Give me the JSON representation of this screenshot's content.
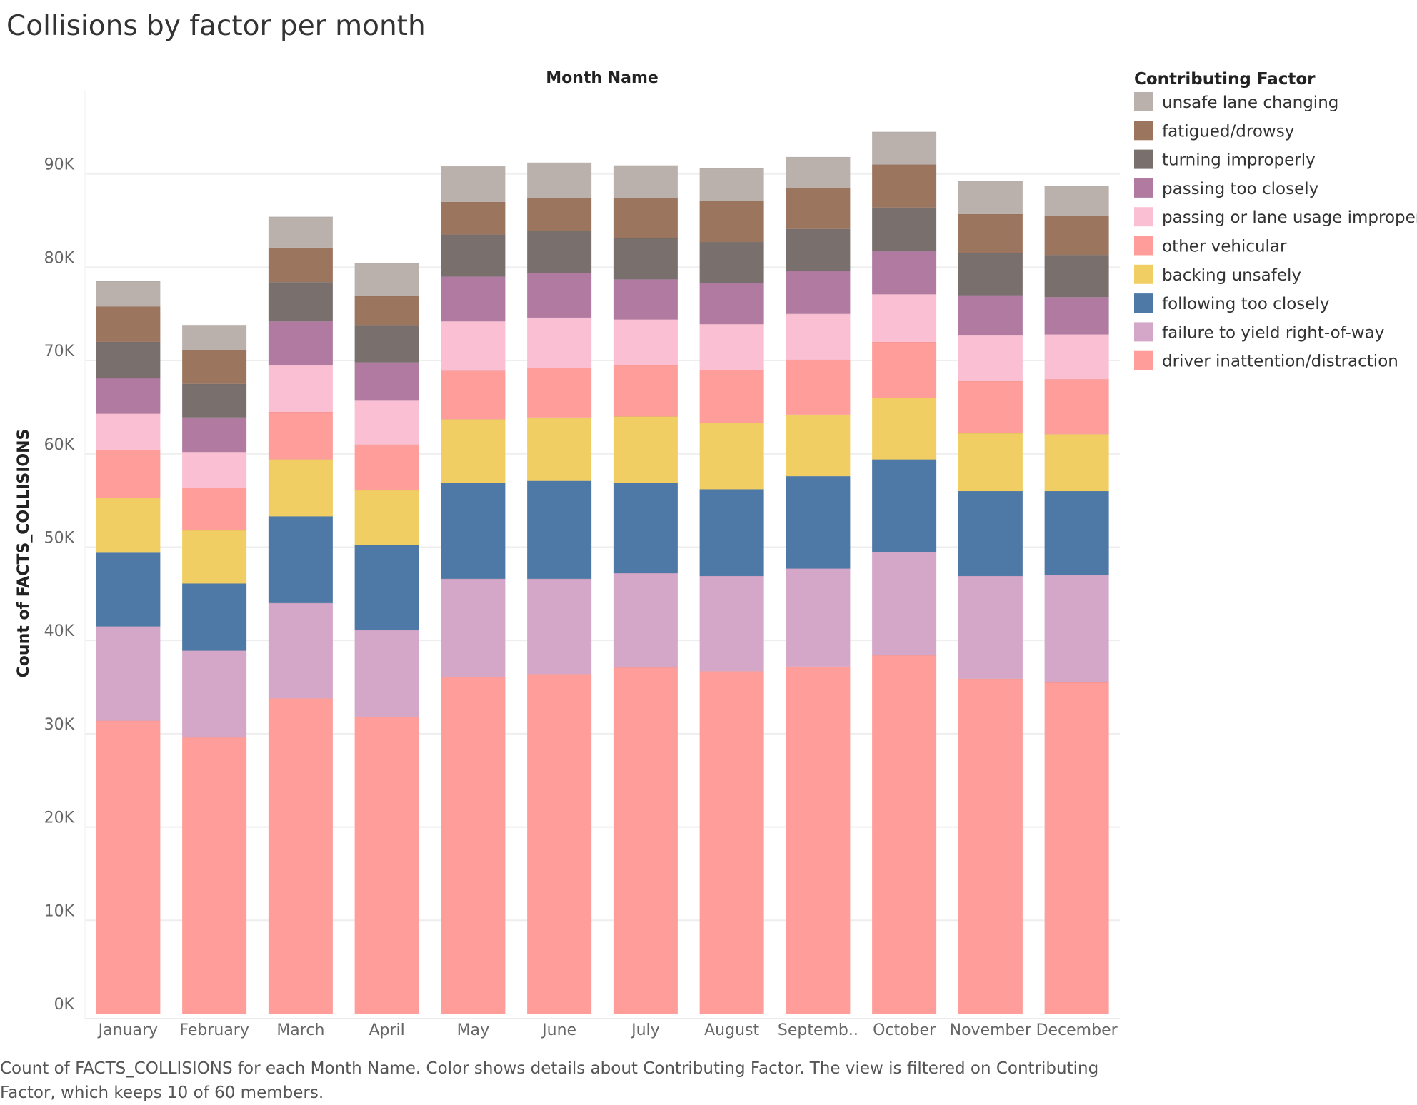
{
  "title": "Collisions by factor per month",
  "caption": "Count of FACTS_COLLISIONS for each Month Name.  Color shows details about Contributing Factor. The view is filtered on Contributing Factor, which keeps 10 of 60 members.",
  "chart_data": {
    "type": "bar",
    "stacked": true,
    "title": "Collisions by factor per month",
    "column_header": "Month Name",
    "ylabel": "Count of FACTS_COLLISIONS",
    "ylim": [
      0,
      99000
    ],
    "yticks": [
      0,
      10000,
      20000,
      30000,
      40000,
      50000,
      60000,
      70000,
      80000,
      90000
    ],
    "ytick_labels": [
      "0K",
      "10K",
      "20K",
      "30K",
      "40K",
      "50K",
      "60K",
      "70K",
      "80K",
      "90K"
    ],
    "grid": true,
    "legend_title": "Contributing Factor",
    "legend_position": "right",
    "categories": [
      "January",
      "February",
      "March",
      "April",
      "May",
      "June",
      "July",
      "August",
      "September",
      "October",
      "November",
      "December"
    ],
    "category_labels": [
      "January",
      "February",
      "March",
      "April",
      "May",
      "June",
      "July",
      "August",
      "Septemb..",
      "October",
      "November",
      "December"
    ],
    "series": [
      {
        "name": "driver inattention/distraction",
        "color": "#FF9D9A",
        "values": [
          31400,
          29600,
          33800,
          31800,
          36100,
          36400,
          37100,
          36700,
          37200,
          38400,
          35900,
          35500
        ]
      },
      {
        "name": "failure to yield right-of-way",
        "color": "#D4A6C8",
        "values": [
          10100,
          9300,
          10200,
          9300,
          10500,
          10200,
          10100,
          10200,
          10500,
          11100,
          11000,
          11500
        ]
      },
      {
        "name": "following too closely",
        "color": "#4E79A7",
        "values": [
          7900,
          7200,
          9300,
          9100,
          10300,
          10500,
          9700,
          9300,
          9900,
          9900,
          9100,
          9000
        ]
      },
      {
        "name": "backing unsafely",
        "color": "#F1CE63",
        "values": [
          5900,
          5700,
          6100,
          5900,
          6800,
          6800,
          7100,
          7100,
          6600,
          6600,
          6200,
          6100
        ]
      },
      {
        "name": "other vehicular",
        "color": "#FF9D9A",
        "values": [
          5100,
          4600,
          5100,
          4900,
          5200,
          5300,
          5500,
          5700,
          5900,
          6000,
          5600,
          5900
        ]
      },
      {
        "name": "passing or lane usage improper",
        "color": "#FABFD2",
        "values": [
          3900,
          3800,
          5000,
          4700,
          5300,
          5400,
          4900,
          4900,
          4900,
          5100,
          4900,
          4800
        ]
      },
      {
        "name": "passing too closely",
        "color": "#B07AA1",
        "values": [
          3800,
          3700,
          4700,
          4100,
          4800,
          4800,
          4300,
          4400,
          4600,
          4600,
          4300,
          4000
        ]
      },
      {
        "name": "turning improperly",
        "color": "#79706E",
        "values": [
          3900,
          3600,
          4200,
          4000,
          4500,
          4500,
          4400,
          4400,
          4500,
          4700,
          4500,
          4500
        ]
      },
      {
        "name": "fatigued/drowsy",
        "color": "#9C755F",
        "values": [
          3800,
          3600,
          3700,
          3100,
          3500,
          3500,
          4300,
          4400,
          4400,
          4600,
          4200,
          4200
        ]
      },
      {
        "name": "unsafe lane changing",
        "color": "#BAB0AC",
        "values": [
          2700,
          2700,
          3300,
          3500,
          3800,
          3800,
          3500,
          3500,
          3300,
          3500,
          3500,
          3200
        ]
      }
    ]
  }
}
